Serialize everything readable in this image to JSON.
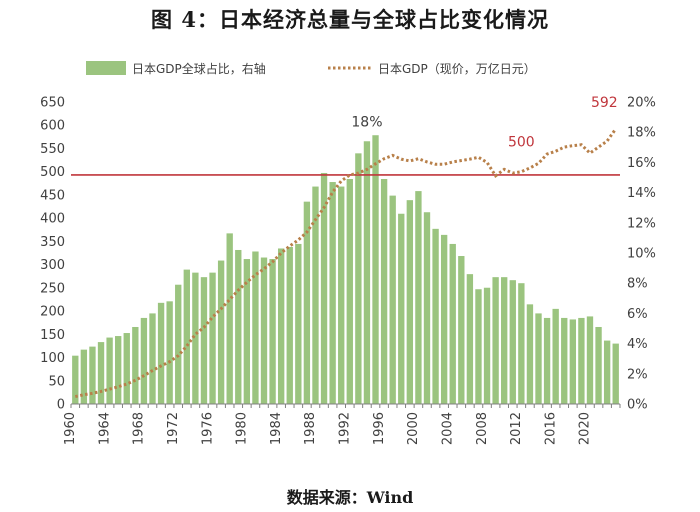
{
  "title": "图 4：日本经济总量与全球占比变化情况",
  "source": "数据来源：Wind",
  "chart_data": {
    "type": "bar+line",
    "categories": [
      1960,
      1961,
      1962,
      1963,
      1964,
      1965,
      1966,
      1967,
      1968,
      1969,
      1970,
      1971,
      1972,
      1973,
      1974,
      1975,
      1976,
      1977,
      1978,
      1979,
      1980,
      1981,
      1982,
      1983,
      1984,
      1985,
      1986,
      1987,
      1988,
      1989,
      1990,
      1991,
      1992,
      1993,
      1994,
      1995,
      1996,
      1997,
      1998,
      1999,
      2000,
      2001,
      2002,
      2003,
      2004,
      2005,
      2006,
      2007,
      2008,
      2009,
      2010,
      2011,
      2012,
      2013,
      2014,
      2015,
      2016,
      2017,
      2018,
      2019,
      2020,
      2021,
      2022,
      2023
    ],
    "series": [
      {
        "name": "日本GDP全球占比，右轴",
        "type": "bar",
        "axis": "right",
        "unit": "%",
        "color": "#9bc47f",
        "values": [
          3.2,
          3.6,
          3.8,
          4.1,
          4.4,
          4.5,
          4.7,
          5.1,
          5.7,
          6.0,
          6.7,
          6.8,
          7.9,
          8.9,
          8.7,
          8.4,
          8.7,
          9.5,
          11.3,
          10.2,
          9.6,
          10.1,
          9.7,
          9.6,
          10.3,
          10.4,
          10.6,
          13.4,
          14.4,
          15.3,
          14.7,
          14.4,
          14.9,
          16.6,
          17.4,
          17.8,
          14.9,
          13.8,
          12.6,
          13.5,
          14.1,
          12.7,
          11.6,
          11.2,
          10.6,
          9.8,
          8.6,
          7.6,
          7.7,
          8.4,
          8.4,
          8.2,
          8.0,
          6.6,
          6.0,
          5.7,
          6.3,
          5.7,
          5.6,
          5.7,
          5.8,
          5.1,
          4.2,
          4.0
        ]
      },
      {
        "name": "日本GDP（现价，万亿日元）",
        "type": "line",
        "axis": "left",
        "color": "#b8804a",
        "values": [
          16,
          20,
          23,
          27,
          32,
          37,
          43,
          51,
          61,
          72,
          82,
          91,
          104,
          125,
          150,
          165,
          187,
          205,
          225,
          245,
          262,
          278,
          291,
          306,
          325,
          340,
          353,
          370,
          397,
          423,
          456,
          480,
          493,
          497,
          505,
          517,
          528,
          535,
          527,
          523,
          528,
          521,
          516,
          516,
          521,
          524,
          527,
          531,
          520,
          491,
          505,
          497,
          500,
          508,
          518,
          538,
          544,
          553,
          556,
          558,
          540,
          553,
          566,
          592
        ]
      }
    ],
    "left_axis": {
      "min": 0,
      "max": 650,
      "step": 50,
      "ticks": [
        "0",
        "50",
        "100",
        "150",
        "200",
        "250",
        "300",
        "350",
        "400",
        "450",
        "500",
        "550",
        "600",
        "650"
      ]
    },
    "right_axis": {
      "min": 0,
      "max": 20,
      "step": 2,
      "ticks": [
        "0%",
        "2%",
        "4%",
        "6%",
        "8%",
        "10%",
        "12%",
        "14%",
        "16%",
        "18%",
        "20%"
      ]
    },
    "x_tick_labels": [
      "1960",
      "1964",
      "1968",
      "1972",
      "1976",
      "1980",
      "1984",
      "1988",
      "1992",
      "1996",
      "2000",
      "2004",
      "2008",
      "2012",
      "2016",
      "2020"
    ],
    "reference_line": {
      "axis": "left",
      "value": 493,
      "color": "#c0363c"
    },
    "annotations": [
      {
        "text": "18%",
        "year": 1994,
        "color": "#404040"
      },
      {
        "text": "500",
        "year": 2012,
        "color": "#c0363c"
      },
      {
        "text": "592",
        "year": 2023,
        "color": "#c0363c"
      }
    ],
    "grid": false,
    "legend": "top"
  }
}
